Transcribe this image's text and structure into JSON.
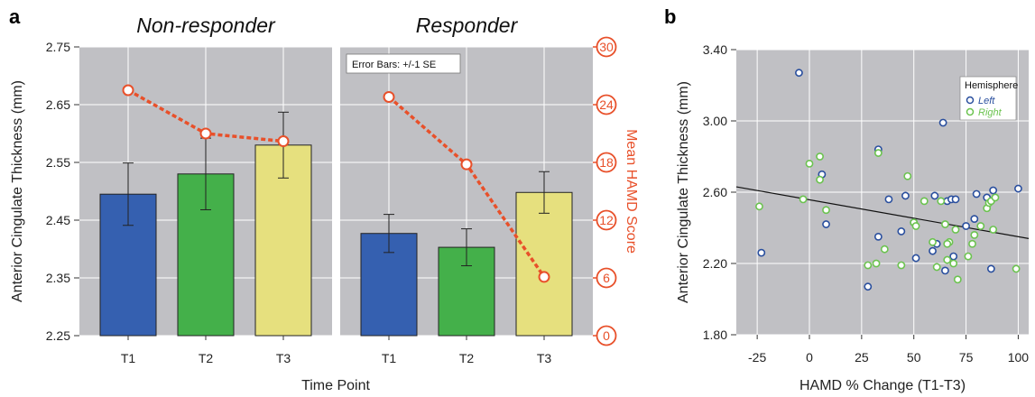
{
  "panel_labels": {
    "a": "a",
    "b": "b"
  },
  "chart_data": [
    {
      "type": "bar",
      "panel": "a",
      "subpanels": [
        "Non-responder",
        "Responder"
      ],
      "categories": [
        "T1",
        "T2",
        "T3"
      ],
      "xlabel": "Time Point",
      "ylabel": "Anterior Cingulate Thickness (mm)",
      "ylim": [
        2.25,
        2.75
      ],
      "yticks": [
        "2.25",
        "2.35",
        "2.45",
        "2.55",
        "2.65",
        "2.75"
      ],
      "y2label": "Mean HAMD Score",
      "y2lim": [
        0,
        30
      ],
      "y2ticks": [
        "0",
        "6",
        "12",
        "18",
        "24",
        "30"
      ],
      "note": "Error Bars: +/-1 SE",
      "bar_colors": [
        "#3560b0",
        "#44b04a",
        "#e6e07e"
      ],
      "hamd_color": "#e8502a",
      "groups": [
        {
          "name": "Non-responder",
          "values": [
            2.495,
            2.53,
            2.58
          ],
          "errors": [
            0.054,
            0.062,
            0.057
          ],
          "hamd": [
            25.5,
            21.0,
            20.2
          ]
        },
        {
          "name": "Responder",
          "values": [
            2.427,
            2.403,
            2.498
          ],
          "errors": [
            0.033,
            0.032,
            0.036
          ],
          "hamd": [
            24.8,
            17.8,
            6.1
          ]
        }
      ]
    },
    {
      "type": "scatter",
      "panel": "b",
      "xlabel": "HAMD % Change (T1-T3)",
      "ylabel": "Anterior Cingulate Thickness (mm)",
      "xlim": [
        -35,
        105
      ],
      "ylim": [
        1.8,
        3.4
      ],
      "xticks": [
        "-25",
        "0",
        "25",
        "50",
        "75",
        "100"
      ],
      "yticks": [
        "1.80",
        "2.20",
        "2.60",
        "3.00",
        "3.40"
      ],
      "legend_title": "Hemisphere",
      "legend_position": "top-right",
      "fit_line": {
        "x": [
          -35,
          105
        ],
        "y": [
          2.63,
          2.34
        ]
      },
      "series": [
        {
          "name": "Left",
          "color": "#2a4f9e",
          "points": [
            [
              -23,
              2.26
            ],
            [
              -5,
              3.27
            ],
            [
              6,
              2.7
            ],
            [
              8,
              2.42
            ],
            [
              33,
              2.84
            ],
            [
              33,
              2.35
            ],
            [
              38,
              2.56
            ],
            [
              44,
              2.38
            ],
            [
              46,
              2.58
            ],
            [
              51,
              2.23
            ],
            [
              60,
              2.58
            ],
            [
              61,
              2.31
            ],
            [
              64,
              2.99
            ],
            [
              65,
              2.16
            ],
            [
              66,
              2.55
            ],
            [
              68,
              2.56
            ],
            [
              70,
              2.56
            ],
            [
              69,
              2.24
            ],
            [
              28,
              2.07
            ],
            [
              75,
              2.41
            ],
            [
              79,
              2.45
            ],
            [
              80,
              2.59
            ],
            [
              85,
              2.57
            ],
            [
              87,
              2.17
            ],
            [
              88,
              2.61
            ],
            [
              100,
              2.62
            ],
            [
              59,
              2.27
            ],
            [
              50,
              2.43
            ]
          ]
        },
        {
          "name": "Right",
          "color": "#6bc34f",
          "points": [
            [
              -24,
              2.52
            ],
            [
              -3,
              2.56
            ],
            [
              0,
              2.76
            ],
            [
              5,
              2.8
            ],
            [
              5,
              2.67
            ],
            [
              8,
              2.5
            ],
            [
              28,
              2.19
            ],
            [
              32,
              2.2
            ],
            [
              33,
              2.82
            ],
            [
              36,
              2.28
            ],
            [
              44,
              2.19
            ],
            [
              47,
              2.69
            ],
            [
              50,
              2.43
            ],
            [
              51,
              2.41
            ],
            [
              55,
              2.55
            ],
            [
              59,
              2.32
            ],
            [
              61,
              2.18
            ],
            [
              63,
              2.55
            ],
            [
              65,
              2.42
            ],
            [
              66,
              2.22
            ],
            [
              67,
              2.32
            ],
            [
              69,
              2.2
            ],
            [
              70,
              2.39
            ],
            [
              71,
              2.11
            ],
            [
              76,
              2.24
            ],
            [
              78,
              2.31
            ],
            [
              79,
              2.36
            ],
            [
              82,
              2.41
            ],
            [
              85,
              2.51
            ],
            [
              86,
              2.54
            ],
            [
              87,
              2.55
            ],
            [
              88,
              2.39
            ],
            [
              89,
              2.57
            ],
            [
              99,
              2.17
            ],
            [
              66,
              2.31
            ]
          ]
        }
      ]
    }
  ]
}
